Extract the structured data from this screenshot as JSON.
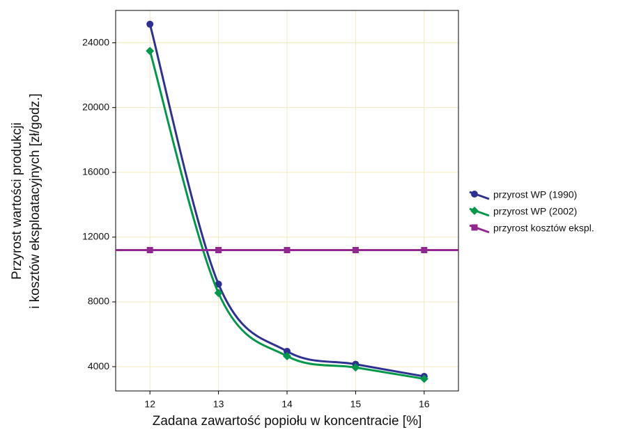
{
  "chart_data": {
    "type": "line",
    "xlabel": "Zadana zawartość popiołu w koncentracie  [%]",
    "ylabel": [
      "Przyrost wartości produkcji",
      "i kosztów eksploatacyjnych [zł/godz.]"
    ],
    "x": [
      12,
      13,
      14,
      15,
      16
    ],
    "series": [
      {
        "name": "przyrost WP (1990)",
        "color": "#2e3192",
        "marker": "circle",
        "values": [
          25150,
          9100,
          4950,
          4150,
          3400
        ]
      },
      {
        "name": "przyrost WP (2002)",
        "color": "#00984a",
        "marker": "diamond",
        "values": [
          23500,
          8550,
          4650,
          3950,
          3250
        ]
      },
      {
        "name": "przyrost kosztów ekspl.",
        "color": "#92278f",
        "marker": "square",
        "values": [
          11200,
          11200,
          11200,
          11200,
          11200
        ]
      }
    ],
    "xlim": [
      11.5,
      16.5
    ],
    "xticks": [
      12,
      13,
      14,
      15,
      16
    ],
    "ylim": [
      2500,
      26000
    ],
    "yticks": [
      4000,
      8000,
      12000,
      16000,
      20000,
      24000
    ],
    "grid": true,
    "legend": "right",
    "smooth": true
  }
}
